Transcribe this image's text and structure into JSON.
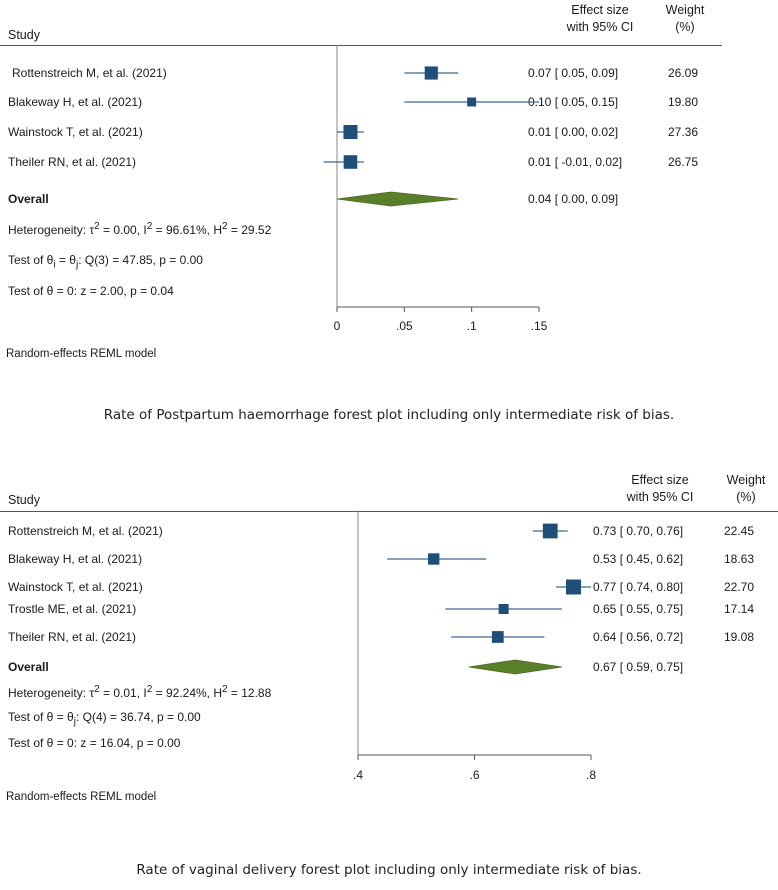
{
  "plots": [
    {
      "headers": {
        "study": "Study",
        "effect_line1": "Effect size",
        "effect_line2": "with 95% CI",
        "weight_line1": "Weight",
        "weight_line2": "(%)"
      },
      "studies": [
        {
          "name": "Rottenstreich M, et al. (2021)",
          "ci_text": "0.07 [  0.05,  0.09]",
          "weight": "26.09"
        },
        {
          "name": "Blakeway H, et al. (2021)",
          "ci_text": "0.10 [  0.05,  0.15]",
          "weight": "19.80"
        },
        {
          "name": "Wainstock T, et al. (2021)",
          "ci_text": "0.01 [  0.00,  0.02]",
          "weight": "27.36"
        },
        {
          "name": "Theiler RN, et al. (2021)",
          "ci_text": "0.01 [ -0.01,  0.02]",
          "weight": "26.75"
        }
      ],
      "overall": {
        "label": "Overall",
        "ci_text": "0.04 [  0.00,  0.09]"
      },
      "stats": {
        "heterogeneity": {
          "prefix": "Heterogeneity: τ",
          "tau_sup": "2",
          "tau_val": " = 0.00, I",
          "i_sup": "2",
          "i_val": " = 96.61%, H",
          "h_sup": "2",
          "h_val": " = 29.52"
        },
        "test_theta_i": {
          "prefix": "Test of θ",
          "sub1": "i",
          "mid": " = θ",
          "sub2": "j",
          "rest": ": Q(3) = 47.85, p = 0.00"
        },
        "test_theta0": "Test of θ = 0: z = 2.00, p = 0.04"
      },
      "model_label": "Random-effects REML model",
      "caption": "Rate of Postpartum haemorrhage forest plot including only intermediate risk of bias."
    },
    {
      "headers": {
        "study": "Study",
        "effect_line1": "Effect size",
        "effect_line2": "with 95% CI",
        "weight_line1": "Weight",
        "weight_line2": "(%)"
      },
      "studies": [
        {
          "name": "Rottenstreich M, et al. (2021)",
          "ci_text": "0.73 [ 0.70,  0.76]",
          "weight": "22.45"
        },
        {
          "name": "Blakeway H, et al. (2021)",
          "ci_text": "0.53 [ 0.45,  0.62]",
          "weight": "18.63"
        },
        {
          "name": "Wainstock T, et al. (2021)",
          "ci_text": "0.77 [ 0.74,  0.80]",
          "weight": "22.70"
        },
        {
          "name": "Trostle ME, et al. (2021)",
          "ci_text": "0.65 [ 0.55,  0.75]",
          "weight": "17.14"
        },
        {
          "name": "Theiler RN, et al. (2021)",
          "ci_text": "0.64 [ 0.56,  0.72]",
          "weight": "19.08"
        }
      ],
      "overall": {
        "label": "Overall",
        "ci_text": "0.67 [ 0.59,  0.75]"
      },
      "stats": {
        "heterogeneity": {
          "prefix": "Heterogeneity: τ",
          "tau_sup": "2",
          "tau_val": " = 0.01, I",
          "i_sup": "2",
          "i_val": " = 92.24%, H",
          "h_sup": "2",
          "h_val": " = 12.88"
        },
        "test_theta_i": {
          "prefix": "Test of θ = θ",
          "sub1": "j",
          "mid": "",
          "sub2": "",
          "rest": ": Q(4) = 36.74, p = 0.00"
        },
        "test_theta0": "Test of θ = 0: z = 16.04, p = 0.00"
      },
      "model_label": "Random-effects REML model",
      "caption": "Rate of vaginal delivery forest plot including only intermediate risk of bias."
    }
  ],
  "chart_data": [
    {
      "type": "forest",
      "title": "Rate of Postpartum haemorrhage forest plot including only intermediate risk of bias.",
      "categories": [
        "Rottenstreich M, et al. (2021)",
        "Blakeway H, et al. (2021)",
        "Wainstock T, et al. (2021)",
        "Theiler RN, et al. (2021)"
      ],
      "estimates": [
        0.07,
        0.1,
        0.01,
        0.01
      ],
      "lower": [
        0.05,
        0.05,
        0.0,
        -0.01
      ],
      "upper": [
        0.09,
        0.15,
        0.02,
        0.02
      ],
      "weights": [
        26.09,
        19.8,
        27.36,
        26.75
      ],
      "overall": {
        "estimate": 0.04,
        "lower": 0.0,
        "upper": 0.09
      },
      "xlim": [
        0,
        0.15
      ],
      "xticks": [
        0,
        0.05,
        0.1,
        0.15
      ],
      "xtick_labels": [
        "0",
        ".05",
        ".1",
        ".15"
      ],
      "colors": {
        "marker": "#1f4e79",
        "ci_line": "#3b6a94",
        "overall": "#5a7f2a"
      }
    },
    {
      "type": "forest",
      "title": "Rate of vaginal delivery forest plot including only intermediate risk of bias.",
      "categories": [
        "Rottenstreich M, et al. (2021)",
        "Blakeway H, et al. (2021)",
        "Wainstock T, et al. (2021)",
        "Trostle ME, et al. (2021)",
        "Theiler RN, et al. (2021)"
      ],
      "estimates": [
        0.73,
        0.53,
        0.77,
        0.65,
        0.64
      ],
      "lower": [
        0.7,
        0.45,
        0.74,
        0.55,
        0.56
      ],
      "upper": [
        0.76,
        0.62,
        0.8,
        0.75,
        0.72
      ],
      "weights": [
        22.45,
        18.63,
        22.7,
        17.14,
        19.08
      ],
      "overall": {
        "estimate": 0.67,
        "lower": 0.59,
        "upper": 0.75
      },
      "xlim": [
        0.4,
        0.8
      ],
      "xticks": [
        0.4,
        0.6,
        0.8
      ],
      "xtick_labels": [
        ".4",
        ".6",
        ".8"
      ],
      "colors": {
        "marker": "#1f4e79",
        "ci_line": "#3b6a94",
        "overall": "#5a7f2a"
      }
    }
  ]
}
